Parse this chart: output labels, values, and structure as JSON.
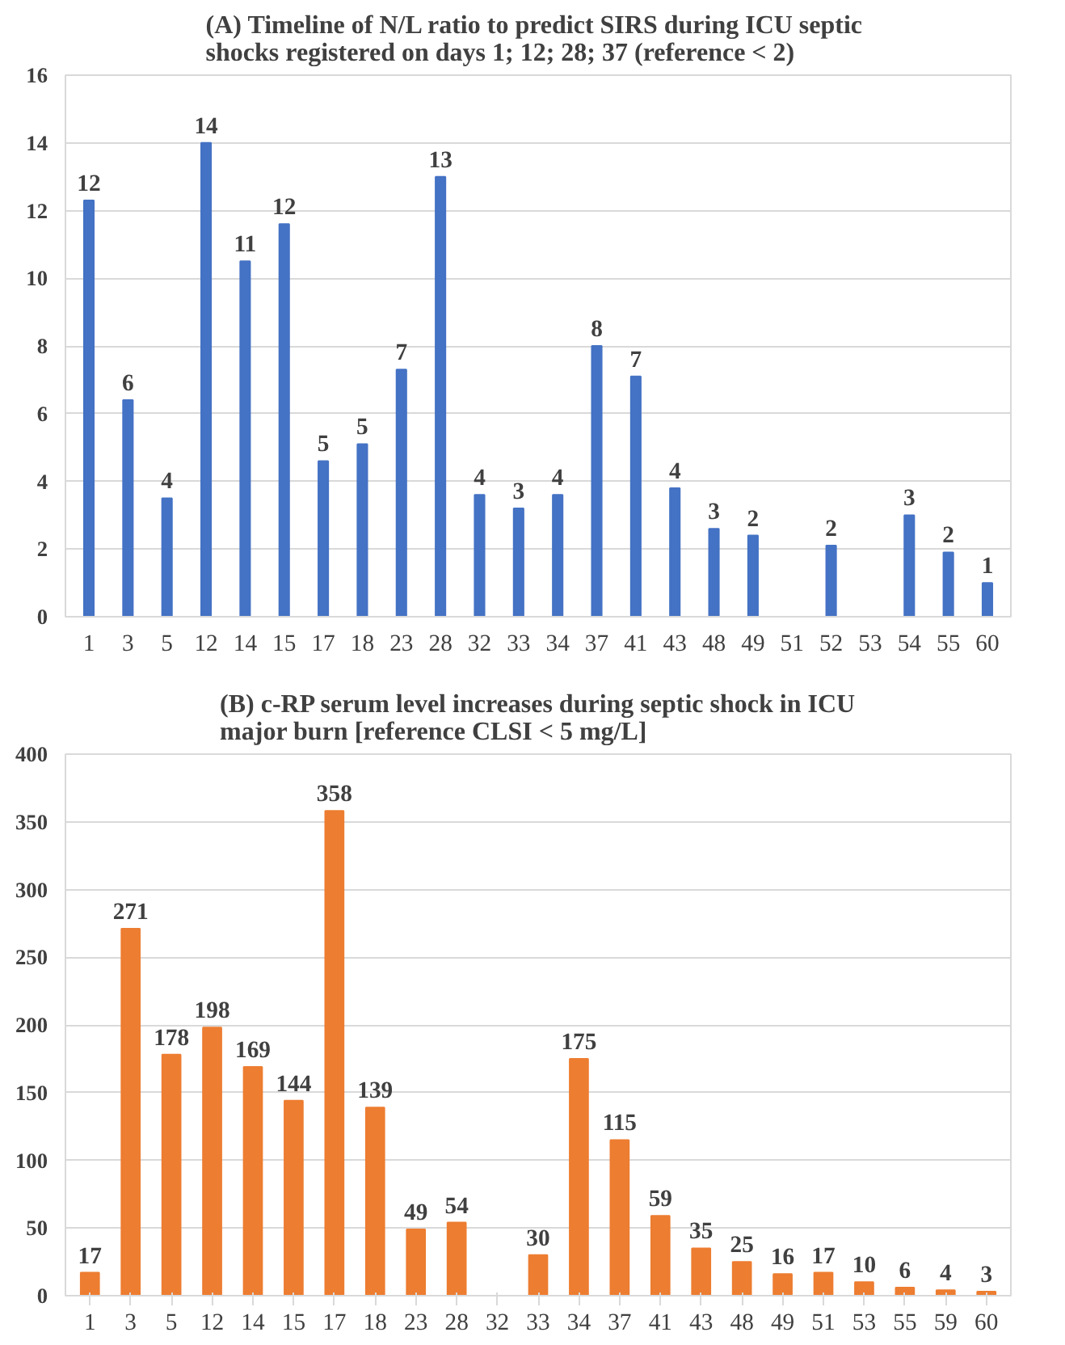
{
  "chart_data": [
    {
      "type": "bar",
      "title": "(A) Timeline of N/L ratio to predict SIRS during  ICU septic\nshocks registered on days 1; 12; 28; 37 (reference < 2)",
      "categories": [
        "1",
        "3",
        "5",
        "12",
        "14",
        "15",
        "17",
        "18",
        "23",
        "28",
        "32",
        "33",
        "34",
        "37",
        "41",
        "43",
        "48",
        "49",
        "51",
        "52",
        "53",
        "54",
        "55",
        "60"
      ],
      "series": [
        {
          "color": "#4472c4",
          "values": [
            12.3,
            6.4,
            3.5,
            14.0,
            10.5,
            11.6,
            4.6,
            5.1,
            7.3,
            13.0,
            3.6,
            3.2,
            3.6,
            8.0,
            7.1,
            3.8,
            2.6,
            2.4,
            null,
            2.1,
            null,
            3.0,
            1.9,
            1.0
          ]
        }
      ],
      "value_labels": [
        "12",
        "6",
        "4",
        "14",
        "11",
        "12",
        "5",
        "5",
        "7",
        "13",
        "4",
        "3",
        "4",
        "8",
        "7",
        "4",
        "3",
        "2",
        null,
        "2",
        null,
        "3",
        "2",
        "1"
      ],
      "ylim": [
        0,
        16
      ],
      "yticks": [
        0,
        2,
        4,
        6,
        8,
        10,
        12,
        14,
        16
      ],
      "grid": "y"
    },
    {
      "type": "bar",
      "title": "(B) c-RP serum level increases during septic shock in ICU\nmajor burn  [reference CLSI < 5 mg/L]",
      "categories": [
        "1",
        "3",
        "5",
        "12",
        "14",
        "15",
        "17",
        "18",
        "23",
        "28",
        "32",
        "33",
        "34",
        "37",
        "41",
        "43",
        "48",
        "49",
        "51",
        "53",
        "55",
        "59",
        "60"
      ],
      "series": [
        {
          "color": "#ed7d31",
          "values": [
            17,
            271,
            178,
            198,
            169,
            144,
            358,
            139,
            49,
            54,
            null,
            30,
            175,
            115,
            59,
            35,
            25,
            16,
            17,
            10,
            6,
            4,
            3
          ]
        }
      ],
      "data_labels": true,
      "ylim": [
        0,
        400
      ],
      "yticks": [
        0,
        50,
        100,
        150,
        200,
        250,
        300,
        350,
        400
      ],
      "grid": "y"
    }
  ]
}
